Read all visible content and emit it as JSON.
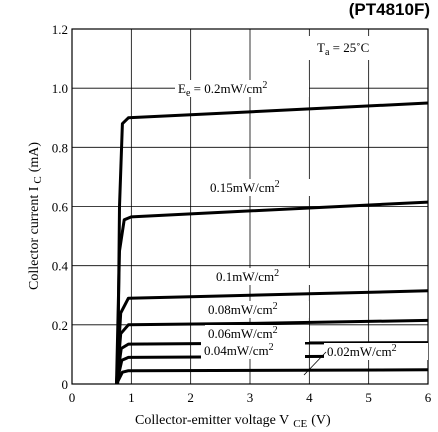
{
  "model_label": "(PT4810F)",
  "chart_data": {
    "type": "line",
    "xlabel": "Collector-emitter voltage V",
    "xlabel_sub": "CE",
    "xlabel_unit": "(V)",
    "ylabel": "Collector current I",
    "ylabel_sub": "C",
    "ylabel_unit": "(mA)",
    "xlim": [
      0,
      6
    ],
    "ylim": [
      0,
      1.2
    ],
    "xticks": [
      "0",
      "1",
      "2",
      "3",
      "4",
      "5",
      "6"
    ],
    "yticks": [
      "0",
      "0.2",
      "0.4",
      "0.6",
      "0.8",
      "1.0",
      "1.2"
    ],
    "grid": true,
    "condition": {
      "main": "T",
      "sub": "a",
      "rest": " = 25˚C"
    },
    "series": [
      {
        "name": "E",
        "name_sub": "e",
        "name_rest": " = 0.2mW/cm",
        "name_sup": "2",
        "points": [
          [
            0.77,
            0
          ],
          [
            0.8,
            0.6
          ],
          [
            0.85,
            0.88
          ],
          [
            0.95,
            0.9
          ],
          [
            2,
            0.91
          ],
          [
            4,
            0.93
          ],
          [
            6,
            0.95
          ]
        ]
      },
      {
        "name": "0.15mW/cm",
        "name_sup": "2",
        "points": [
          [
            0.75,
            0
          ],
          [
            0.8,
            0.45
          ],
          [
            0.88,
            0.555
          ],
          [
            1,
            0.565
          ],
          [
            3,
            0.585
          ],
          [
            6,
            0.615
          ]
        ]
      },
      {
        "name": "0.1mW/cm",
        "name_sup": "2",
        "points": [
          [
            0.75,
            0
          ],
          [
            0.82,
            0.24
          ],
          [
            0.95,
            0.29
          ],
          [
            2,
            0.295
          ],
          [
            4,
            0.305
          ],
          [
            6,
            0.315
          ]
        ]
      },
      {
        "name": "0.08mW/cm",
        "name_sup": "2",
        "points": [
          [
            0.75,
            0
          ],
          [
            0.82,
            0.17
          ],
          [
            0.95,
            0.2
          ],
          [
            3,
            0.205
          ],
          [
            6,
            0.215
          ]
        ]
      },
      {
        "name": "0.06mW/cm",
        "name_sup": "2",
        "points": [
          [
            0.75,
            0
          ],
          [
            0.83,
            0.12
          ],
          [
            0.95,
            0.135
          ],
          [
            3,
            0.138
          ],
          [
            6,
            0.14
          ]
        ]
      },
      {
        "name": "0.04mW/cm",
        "name_sup": "2",
        "points": [
          [
            0.75,
            0
          ],
          [
            0.84,
            0.08
          ],
          [
            0.95,
            0.09
          ],
          [
            3,
            0.092
          ],
          [
            6,
            0.095
          ]
        ]
      },
      {
        "name": "0.02mW/cm",
        "name_sup": "2",
        "points": [
          [
            0.75,
            0
          ],
          [
            0.85,
            0.04
          ],
          [
            0.95,
            0.045
          ],
          [
            6,
            0.048
          ]
        ]
      }
    ]
  }
}
